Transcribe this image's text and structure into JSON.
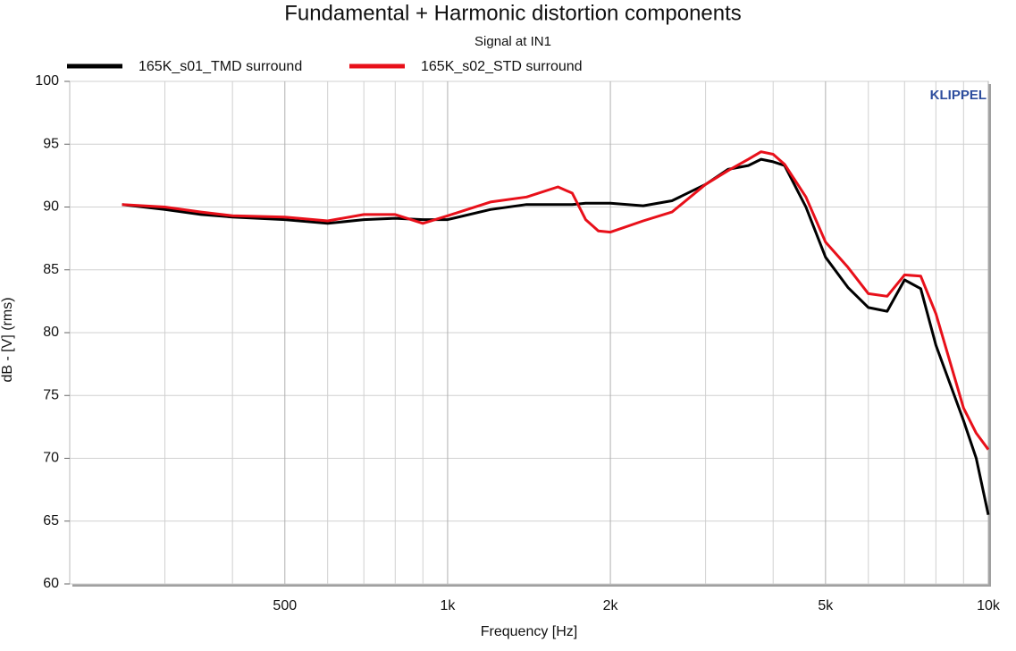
{
  "chart_data": {
    "type": "line",
    "title": "Fundamental + Harmonic distortion components",
    "subtitle": "Signal at IN1",
    "watermark": "KLIPPEL",
    "x_label": "Frequency [Hz]",
    "y_label": "dB - [V] (rms)",
    "x_scale": "log",
    "xlim": [
      200,
      10000
    ],
    "ylim": [
      60,
      100
    ],
    "xticks": [
      {
        "value": 500,
        "label": "500"
      },
      {
        "value": 1000,
        "label": "1k"
      },
      {
        "value": 2000,
        "label": "2k"
      },
      {
        "value": 5000,
        "label": "5k"
      },
      {
        "value": 10000,
        "label": "10k"
      }
    ],
    "x_minor_grid": [
      300,
      400,
      600,
      700,
      800,
      900,
      3000,
      4000,
      6000,
      7000,
      8000,
      9000
    ],
    "yticks": [
      60,
      65,
      70,
      75,
      80,
      85,
      90,
      95,
      100
    ],
    "grid": true,
    "legend": "top-left",
    "x": [
      250,
      300,
      350,
      400,
      500,
      600,
      700,
      800,
      900,
      1000,
      1200,
      1400,
      1600,
      1700,
      1800,
      1900,
      2000,
      2300,
      2600,
      3000,
      3300,
      3600,
      3800,
      4000,
      4200,
      4600,
      5000,
      5500,
      6000,
      6500,
      7000,
      7500,
      8000,
      9000,
      9500,
      10000
    ],
    "series": [
      {
        "name": "165K_s01_TMD surround",
        "color": "#000000",
        "values": [
          90.2,
          89.8,
          89.4,
          89.2,
          89.0,
          88.7,
          89.0,
          89.1,
          89.0,
          89.0,
          89.8,
          90.2,
          90.2,
          90.2,
          90.3,
          90.3,
          90.3,
          90.1,
          90.5,
          91.8,
          93.0,
          93.3,
          93.8,
          93.6,
          93.3,
          90.0,
          86.0,
          83.6,
          82.0,
          81.7,
          84.2,
          83.5,
          79.0,
          73.0,
          70.0,
          65.5
        ]
      },
      {
        "name": "165K_s02_STD surround",
        "color": "#e8101a",
        "values": [
          90.2,
          90.0,
          89.6,
          89.3,
          89.2,
          88.9,
          89.4,
          89.4,
          88.7,
          89.3,
          90.4,
          90.8,
          91.6,
          91.1,
          89.0,
          88.1,
          88.0,
          88.9,
          89.6,
          91.8,
          92.9,
          93.8,
          94.4,
          94.2,
          93.4,
          90.8,
          87.2,
          85.2,
          83.1,
          82.9,
          84.6,
          84.5,
          81.5,
          74.0,
          72.0,
          70.7
        ]
      }
    ]
  }
}
